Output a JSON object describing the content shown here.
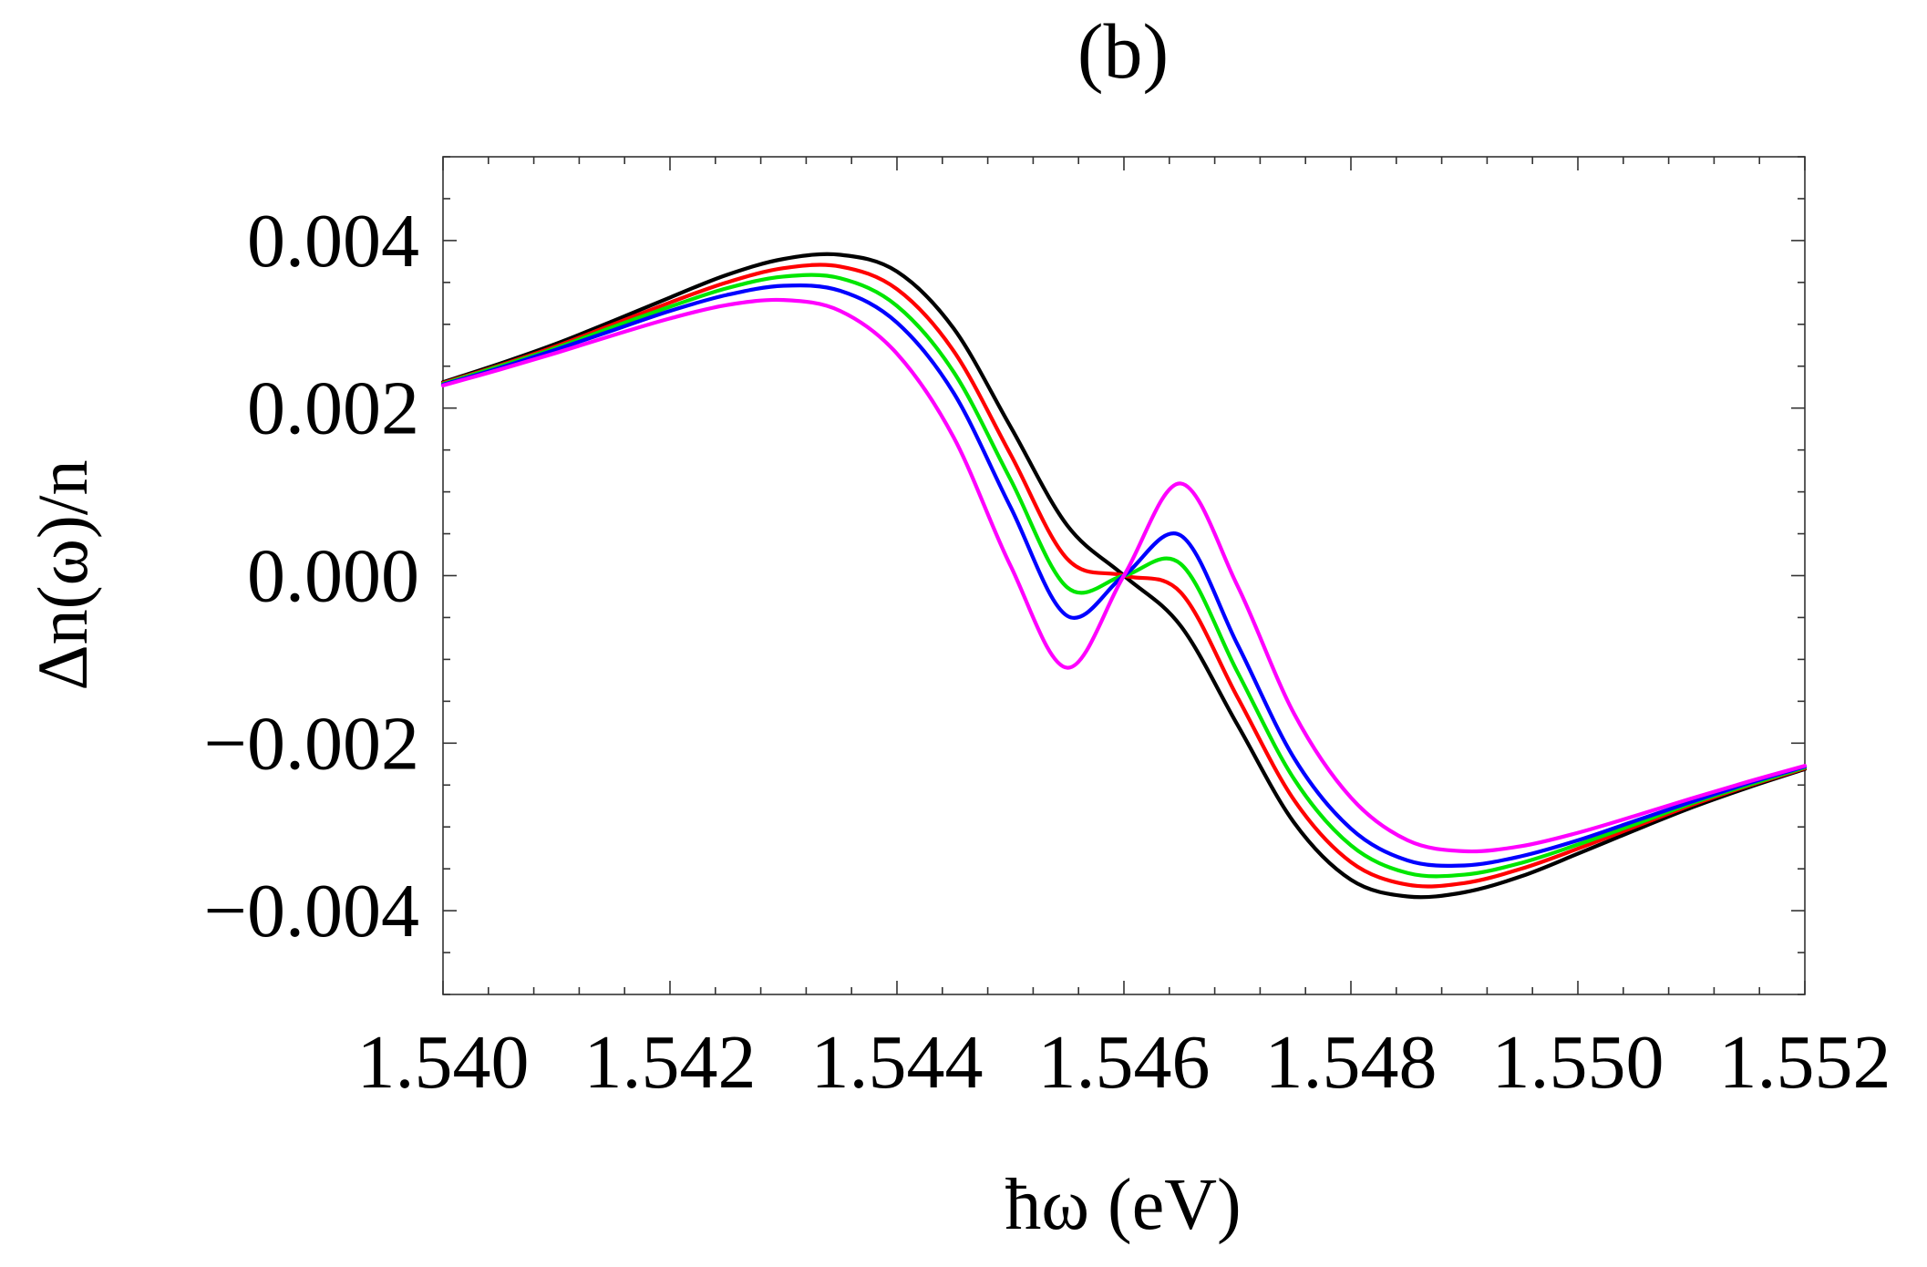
{
  "chart_data": {
    "type": "line",
    "title": "(b)",
    "xlabel": "ħω (eV)",
    "ylabel": "Δn(ω)/n",
    "xlim": [
      1.54,
      1.552
    ],
    "ylim": [
      -0.005,
      0.005
    ],
    "grid": false,
    "x_ticks": [
      {
        "value": 1.54,
        "label": "1.540"
      },
      {
        "value": 1.542,
        "label": "1.542"
      },
      {
        "value": 1.544,
        "label": "1.544"
      },
      {
        "value": 1.546,
        "label": "1.546"
      },
      {
        "value": 1.548,
        "label": "1.548"
      },
      {
        "value": 1.55,
        "label": "1.550"
      },
      {
        "value": 1.552,
        "label": "1.552"
      }
    ],
    "y_ticks": [
      {
        "value": 0.004,
        "label": "0.004"
      },
      {
        "value": 0.002,
        "label": "0.002"
      },
      {
        "value": 0.0,
        "label": "0.000"
      },
      {
        "value": -0.002,
        "label": "−0.002"
      },
      {
        "value": -0.004,
        "label": "−0.004"
      }
    ],
    "x_minor_step": 0.0004,
    "y_minor_step": 0.0005,
    "x": [
      1.54,
      1.5405,
      1.541,
      1.5415,
      1.542,
      1.5425,
      1.543,
      1.5435,
      1.544,
      1.5445,
      1.545,
      1.5455,
      1.546,
      1.5465,
      1.547,
      1.5475,
      1.548,
      1.5485,
      1.549,
      1.5495,
      1.55,
      1.5505,
      1.551,
      1.5515,
      1.552
    ],
    "series": [
      {
        "name": "black",
        "color": "#000000",
        "values": [
          0.00231,
          0.00253,
          0.00277,
          0.00304,
          0.00332,
          0.00359,
          0.00378,
          0.00383,
          0.00363,
          0.00295,
          0.00178,
          0.0006,
          0.0,
          -0.0006,
          -0.00178,
          -0.00295,
          -0.00363,
          -0.00383,
          -0.00378,
          -0.00359,
          -0.00332,
          -0.00304,
          -0.00277,
          -0.00253,
          -0.00231
        ]
      },
      {
        "name": "red",
        "color": "#ff0000",
        "values": [
          0.0023,
          0.00251,
          0.00274,
          0.003,
          0.00326,
          0.0035,
          0.00367,
          0.00369,
          0.00342,
          0.00268,
          0.00145,
          0.0002,
          0.0,
          -0.0002,
          -0.00145,
          -0.00268,
          -0.00342,
          -0.00369,
          -0.00367,
          -0.0035,
          -0.00326,
          -0.003,
          -0.00274,
          -0.00251,
          -0.0023
        ]
      },
      {
        "name": "green",
        "color": "#00e600",
        "values": [
          0.00229,
          0.0025,
          0.00272,
          0.00297,
          0.00321,
          0.00343,
          0.00357,
          0.00355,
          0.00322,
          0.00243,
          0.00115,
          -0.00014,
          0.0,
          0.00014,
          -0.00115,
          -0.00243,
          -0.00322,
          -0.00355,
          -0.00357,
          -0.00343,
          -0.00321,
          -0.00297,
          -0.00272,
          -0.0025,
          -0.00229
        ]
      },
      {
        "name": "blue",
        "color": "#0000ff",
        "values": [
          0.00228,
          0.00248,
          0.0027,
          0.00293,
          0.00316,
          0.00335,
          0.00346,
          0.0034,
          0.00302,
          0.00218,
          0.00082,
          -0.00048,
          0.0,
          0.00048,
          -0.00082,
          -0.00218,
          -0.00302,
          -0.0034,
          -0.00346,
          -0.00335,
          -0.00316,
          -0.00293,
          -0.0027,
          -0.00248,
          -0.00228
        ]
      },
      {
        "name": "magenta",
        "color": "#ff00ff",
        "values": [
          0.00227,
          0.00246,
          0.00266,
          0.00287,
          0.00307,
          0.00323,
          0.00329,
          0.00316,
          0.00265,
          0.00165,
          0.00012,
          -0.0011,
          0.0,
          0.0011,
          -0.00012,
          -0.00165,
          -0.00265,
          -0.00316,
          -0.00329,
          -0.00323,
          -0.00307,
          -0.00287,
          -0.00266,
          -0.00246,
          -0.00227
        ]
      }
    ]
  }
}
